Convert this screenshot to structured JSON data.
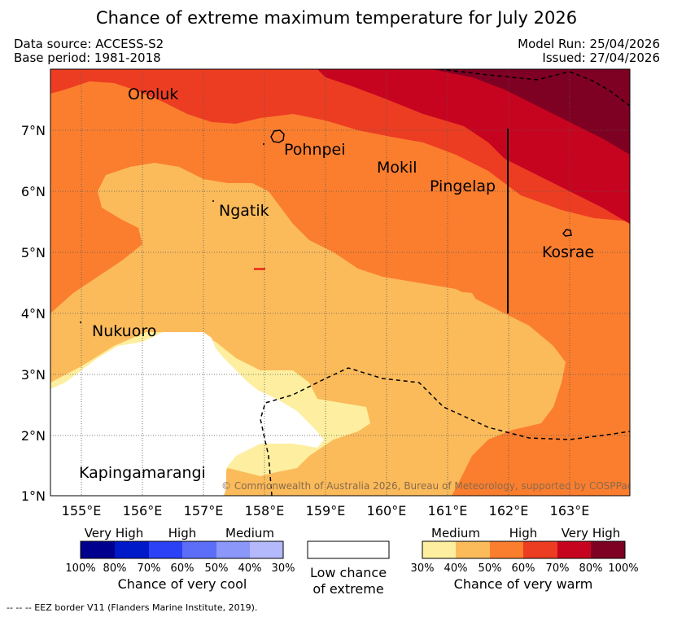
{
  "title": "Chance of extreme maximum temperature for July 2026",
  "data_source": "Data source: ACCESS-S2",
  "base_period": "Base period: 1981-2018",
  "model_run": "Model Run: 25/04/2026",
  "issued": "Issued: 27/04/2026",
  "places": [
    "Oroluk",
    "Pohnpei",
    "Mokil",
    "Pingelap",
    "Ngatik",
    "Kosrae",
    "Nukuoro",
    "Kapingamarangi"
  ],
  "axes": {
    "lat_labels": [
      "7°N",
      "6°N",
      "5°N",
      "4°N",
      "3°N",
      "2°N",
      "1°N"
    ],
    "lon_labels": [
      "155°E",
      "156°E",
      "157°E",
      "158°E",
      "159°E",
      "160°E",
      "161°E",
      "162°E",
      "163°E"
    ]
  },
  "copyright": "© Commonwealth of Australia 2026, Bureau of Meteorology, supported by COSPPac",
  "legend": {
    "cool": {
      "top_labels": [
        "Very High",
        "High",
        "Medium"
      ],
      "ticks": [
        "100%",
        "80%",
        "70%",
        "60%",
        "50%",
        "40%",
        "30%"
      ],
      "caption": "Chance of very cool",
      "colors": [
        "#00008f",
        "#0019c9",
        "#2a41f5",
        "#5c6ef7",
        "#8b97f9",
        "#b3b9fb"
      ]
    },
    "neutral": {
      "caption_line1": "Low chance",
      "caption_line2": "of extreme",
      "color": "#ffffff"
    },
    "warm": {
      "top_labels": [
        "Medium",
        "High",
        "Very High"
      ],
      "ticks": [
        "30%",
        "40%",
        "50%",
        "60%",
        "70%",
        "80%",
        "100%"
      ],
      "caption": "Chance of very warm",
      "colors": [
        "#fdef9f",
        "#fbbb5b",
        "#fb7e2f",
        "#ec3d22",
        "#c7041f",
        "#7e0022"
      ]
    }
  },
  "footnote": "-- -- -- EEZ border V11 (Flanders Marine Institute, 2019)."
}
